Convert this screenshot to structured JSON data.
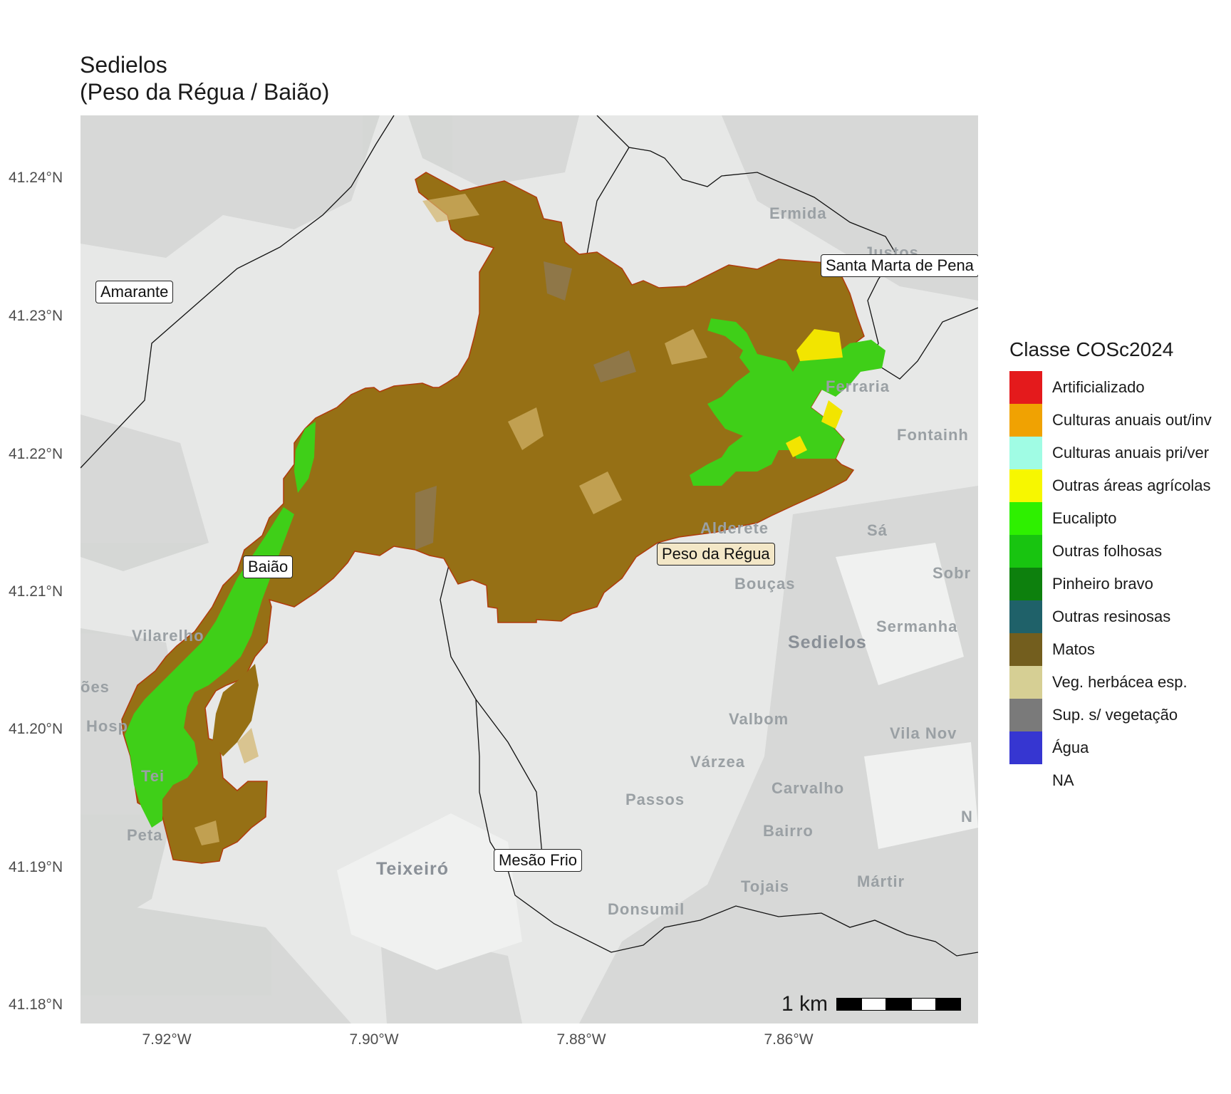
{
  "title": {
    "line1": "Sedielos",
    "line2": "(Peso da Régua / Baião)"
  },
  "axes": {
    "y_ticks": [
      "41.24°N",
      "41.23°N",
      "41.22°N",
      "41.21°N",
      "41.20°N",
      "41.19°N",
      "41.18°N"
    ],
    "x_ticks": [
      "7.92°W",
      "7.90°W",
      "7.88°W",
      "7.86°W"
    ]
  },
  "basemap_places": [
    "Ermida",
    "Justos",
    "Ferraria",
    "Fontainh",
    "Alderete",
    "Sá",
    "Bouças",
    "Sobr",
    "Sermanha",
    "Sedielos",
    "Vilarelho",
    "ões",
    "Hosp",
    "Valbom",
    "Vila Nov",
    "Várzea",
    "Tei",
    "Carvalho",
    "Passos",
    "Bairro",
    "Peta",
    "N",
    "Teixeiró",
    "Tojais",
    "Mártir",
    "Donsumil"
  ],
  "callouts": {
    "amarante": "Amarante",
    "santa_marta": "Santa Marta de Pena",
    "baiao": "Baião",
    "peso_regua": "Peso da Régua",
    "mesao_frio": "Mesão Frio"
  },
  "legend": {
    "title": "Classe COSc2024",
    "items": [
      {
        "label": "Artificializado",
        "color": "#e41a1c"
      },
      {
        "label": "Culturas anuais out/inv",
        "color": "#f0a202"
      },
      {
        "label": "Culturas anuais pri/ver",
        "color": "#a0fce4"
      },
      {
        "label": "Outras áreas agrícolas",
        "color": "#f7f700"
      },
      {
        "label": "Eucalipto",
        "color": "#2ef000"
      },
      {
        "label": "Outras folhosas",
        "color": "#18c410"
      },
      {
        "label": "Pinheiro bravo",
        "color": "#0d800d"
      },
      {
        "label": "Outras resinosas",
        "color": "#1f6169"
      },
      {
        "label": "Matos",
        "color": "#735e1e"
      },
      {
        "label": "Veg. herbácea esp.",
        "color": "#d6cf94"
      },
      {
        "label": "Sup. s/ vegetação",
        "color": "#7a7a7a"
      },
      {
        "label": "Água",
        "color": "#3636d1"
      },
      {
        "label": "NA",
        "color": ""
      }
    ]
  },
  "scalebar": {
    "label": "1 km"
  }
}
